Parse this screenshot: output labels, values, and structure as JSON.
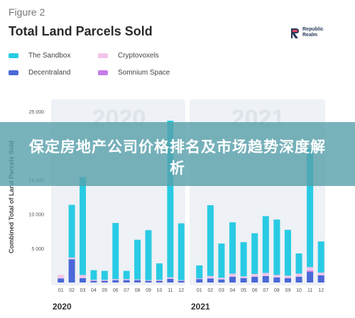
{
  "figure_label": "Figure 2",
  "brand": {
    "line1": "Republic",
    "line2": "Realm",
    "logo_icon": "republic-realm-logo-icon"
  },
  "banner_text": "保定房地产公司价格排名及市场趋势深度解析",
  "colors": {
    "The Sandbox": "#29cbe4",
    "Cryptovoxels": "#f2c4ea",
    "Decentraland": "#4a68d8",
    "Somnium Space": "#c77be8",
    "panel_bg": "#eef1f5",
    "banner": "#56a0aa"
  },
  "chart_data": {
    "type": "bar",
    "stacked": true,
    "title": "Total Land Parcels Sold",
    "ylabel": "Combined Total of Land Parcels Sold",
    "ylim": [
      0,
      25000
    ],
    "yticks": [
      0,
      5000,
      10000,
      15000,
      20000,
      25000
    ],
    "ytick_labels": [
      "",
      "5 000",
      "10 000",
      "15 000",
      "20 000",
      "25 000"
    ],
    "legend": [
      "The Sandbox",
      "Cryptovoxels",
      "Decentraland",
      "Somnium Space"
    ],
    "legend_position": "top",
    "grid": false,
    "panels": [
      {
        "year": "2020",
        "categories": [
          "01",
          "02",
          "03",
          "04",
          "05",
          "06",
          "07",
          "08",
          "09",
          "10",
          "11",
          "12"
        ],
        "series": [
          {
            "name": "Decentraland",
            "values": [
              600,
              3400,
              650,
              250,
              250,
              350,
              350,
              350,
              250,
              250,
              550,
              250
            ]
          },
          {
            "name": "Somnium Space",
            "values": [
              0,
              0,
              0,
              0,
              0,
              0,
              0,
              0,
              0,
              0,
              0,
              0
            ]
          },
          {
            "name": "Cryptovoxels",
            "values": [
              500,
              250,
              450,
              150,
              150,
              150,
              150,
              100,
              100,
              150,
              200,
              100
            ]
          },
          {
            "name": "The Sandbox",
            "values": [
              0,
              7700,
              14300,
              1400,
              1300,
              8200,
              1200,
              5800,
              7300,
              2400,
              22900,
              8300
            ]
          }
        ]
      },
      {
        "year": "2021",
        "categories": [
          "01",
          "02",
          "03",
          "04",
          "05",
          "06",
          "07",
          "08",
          "09",
          "10",
          "11",
          "12"
        ],
        "series": [
          {
            "name": "Decentraland",
            "values": [
              500,
              600,
              450,
              850,
              650,
              850,
              950,
              750,
              650,
              850,
              1550,
              1050
            ]
          },
          {
            "name": "Somnium Space",
            "values": [
              0,
              0,
              0,
              0,
              0,
              0,
              0,
              0,
              0,
              0,
              200,
              0
            ]
          },
          {
            "name": "Cryptovoxels",
            "values": [
              100,
              350,
              250,
              450,
              250,
              400,
              450,
              350,
              350,
              450,
              500,
              400
            ]
          },
          {
            "name": "The Sandbox",
            "values": [
              1900,
              10350,
              5000,
              7500,
              5000,
              5950,
              8300,
              8100,
              6700,
              2950,
              17250,
              4550
            ]
          }
        ]
      }
    ]
  }
}
